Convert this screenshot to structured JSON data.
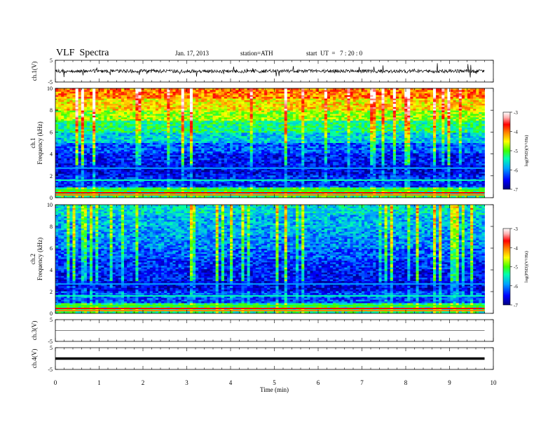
{
  "header": {
    "title": "VLF  Spectra",
    "date": "Jan. 17, 2013",
    "station": "station=ATH",
    "start": "start  UT  =   7 : 20 : 0"
  },
  "chart_data": {
    "type": "heatmap",
    "xlabel": "Time  (min)",
    "x_ticks": [
      "0",
      "1",
      "2",
      "3",
      "4",
      "5",
      "6",
      "7",
      "8",
      "9",
      "10"
    ],
    "xlim": [
      0,
      10
    ],
    "data_end_min": 9.8,
    "panels": [
      {
        "id": "ch1-waveform",
        "type": "line",
        "ylabel": "ch.1(V)",
        "y_ticks": [
          "5",
          "-5"
        ],
        "ylim": [
          -5,
          5
        ],
        "trace_level": 0,
        "trace_noise": "high"
      },
      {
        "id": "ch1-spectrogram",
        "type": "heatmap",
        "ylabel_top": "ch.1",
        "ylabel": "Frequency  (kHz)",
        "y_ticks": [
          "0",
          "2",
          "4",
          "6",
          "8",
          "10"
        ],
        "ylim": [
          0,
          10
        ],
        "mean_logpsd_by_khz": [
          -5.2,
          -6.4,
          -6.6,
          -6.5,
          -6.2,
          -5.7,
          -5.3,
          -4.8,
          -4.4,
          -4.0
        ],
        "colorbar": {
          "label": "log(PSD)(V²/Hz)",
          "ticks": [
            "-3",
            "-4",
            "-5",
            "-6",
            "-7"
          ],
          "range": [
            -7,
            -3
          ]
        }
      },
      {
        "id": "ch2-spectrogram",
        "type": "heatmap",
        "ylabel_top": "ch.2",
        "ylabel": "Frequency  (kHz)",
        "y_ticks": [
          "0",
          "2",
          "4",
          "6",
          "8",
          "10"
        ],
        "ylim": [
          0,
          10
        ],
        "mean_logpsd_by_khz": [
          -5.3,
          -6.3,
          -6.6,
          -6.5,
          -6.4,
          -6.2,
          -6.0,
          -5.9,
          -5.8,
          -5.6
        ],
        "colorbar": {
          "label": "log(PSD)(V²/Hz)",
          "ticks": [
            "-3",
            "-4",
            "-5",
            "-6",
            "-7"
          ],
          "range": [
            -7,
            -3
          ]
        }
      },
      {
        "id": "ch3-waveform",
        "type": "line",
        "ylabel": "ch.3(V)",
        "y_ticks": [
          "5",
          "-5"
        ],
        "ylim": [
          -5,
          5
        ],
        "trace_level": 0,
        "trace_noise": "none"
      },
      {
        "id": "ch4-waveform",
        "type": "line",
        "ylabel": "ch.4(V)",
        "y_ticks": [
          "5",
          "-5"
        ],
        "ylim": [
          -5,
          5
        ],
        "trace_level": 0,
        "trace_noise": "thick"
      }
    ],
    "colors": {
      "frame": "#000000",
      "colormap": [
        "#000080",
        "#0000ff",
        "#00a0ff",
        "#00ffb0",
        "#40ff00",
        "#ffff00",
        "#ff8000",
        "#ff0000",
        "#ffb0b0",
        "#ffffff"
      ]
    }
  }
}
